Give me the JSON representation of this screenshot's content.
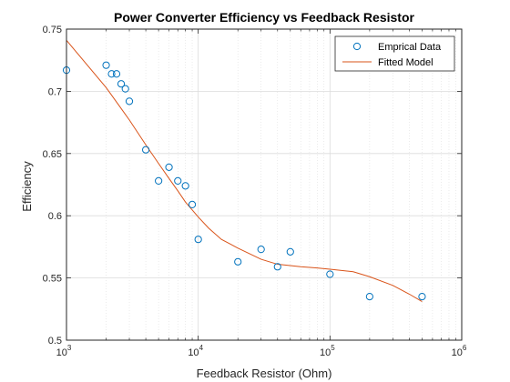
{
  "chart_data": {
    "type": "scatter",
    "title": "Power Converter Efficiency vs Feedback Resistor",
    "xlabel": "Feedback Resistor (Ohm)",
    "ylabel": "Efficiency",
    "xscale": "log",
    "xlim": [
      1000,
      1000000
    ],
    "ylim": [
      0.5,
      0.75
    ],
    "grid": true,
    "legend_position": "top-right",
    "x_ticks": [
      {
        "value": 1000,
        "base": "10",
        "exp": "3"
      },
      {
        "value": 10000,
        "base": "10",
        "exp": "4"
      },
      {
        "value": 100000,
        "base": "10",
        "exp": "5"
      },
      {
        "value": 1000000,
        "base": "10",
        "exp": "6"
      }
    ],
    "y_ticks": [
      {
        "value": 0.5,
        "label": "0.5"
      },
      {
        "value": 0.55,
        "label": "0.55"
      },
      {
        "value": 0.6,
        "label": "0.6"
      },
      {
        "value": 0.65,
        "label": "0.65"
      },
      {
        "value": 0.7,
        "label": "0.7"
      },
      {
        "value": 0.75,
        "label": "0.75"
      }
    ],
    "series": [
      {
        "name": "Emprical Data",
        "style": "markers",
        "color": "#0072BD",
        "points": [
          {
            "x": 1000,
            "y": 0.717
          },
          {
            "x": 2000,
            "y": 0.721
          },
          {
            "x": 2200,
            "y": 0.714
          },
          {
            "x": 2400,
            "y": 0.714
          },
          {
            "x": 2600,
            "y": 0.706
          },
          {
            "x": 2800,
            "y": 0.702
          },
          {
            "x": 3000,
            "y": 0.692
          },
          {
            "x": 4000,
            "y": 0.653
          },
          {
            "x": 5000,
            "y": 0.628
          },
          {
            "x": 6000,
            "y": 0.639
          },
          {
            "x": 7000,
            "y": 0.628
          },
          {
            "x": 8000,
            "y": 0.624
          },
          {
            "x": 9000,
            "y": 0.609
          },
          {
            "x": 10000,
            "y": 0.581
          },
          {
            "x": 20000,
            "y": 0.563
          },
          {
            "x": 30000,
            "y": 0.573
          },
          {
            "x": 40000,
            "y": 0.559
          },
          {
            "x": 50000,
            "y": 0.571
          },
          {
            "x": 100000,
            "y": 0.553
          },
          {
            "x": 200000,
            "y": 0.535
          },
          {
            "x": 500000,
            "y": 0.535
          }
        ]
      },
      {
        "name": "Fitted Model",
        "style": "line",
        "color": "#D95319",
        "points": [
          {
            "x": 1000,
            "y": 0.741
          },
          {
            "x": 2000,
            "y": 0.703
          },
          {
            "x": 3000,
            "y": 0.677
          },
          {
            "x": 4000,
            "y": 0.657
          },
          {
            "x": 5000,
            "y": 0.642
          },
          {
            "x": 6000,
            "y": 0.63
          },
          {
            "x": 7000,
            "y": 0.62
          },
          {
            "x": 8000,
            "y": 0.611
          },
          {
            "x": 10000,
            "y": 0.599
          },
          {
            "x": 12000,
            "y": 0.59
          },
          {
            "x": 15000,
            "y": 0.581
          },
          {
            "x": 20000,
            "y": 0.574
          },
          {
            "x": 30000,
            "y": 0.565
          },
          {
            "x": 40000,
            "y": 0.561
          },
          {
            "x": 60000,
            "y": 0.559
          },
          {
            "x": 80000,
            "y": 0.558
          },
          {
            "x": 100000,
            "y": 0.557
          },
          {
            "x": 150000,
            "y": 0.555
          },
          {
            "x": 200000,
            "y": 0.551
          },
          {
            "x": 300000,
            "y": 0.544
          },
          {
            "x": 400000,
            "y": 0.537
          },
          {
            "x": 500000,
            "y": 0.531
          }
        ]
      }
    ]
  }
}
